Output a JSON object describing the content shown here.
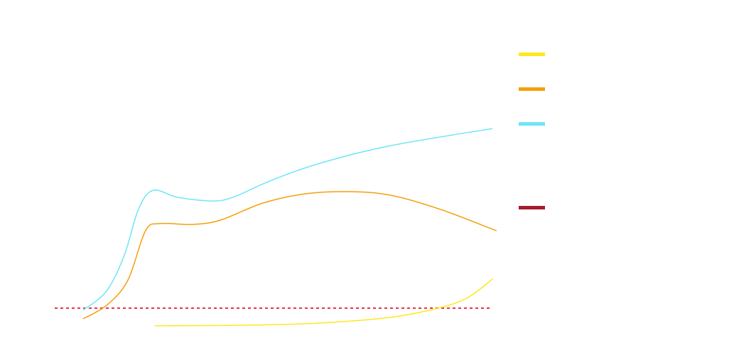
{
  "chart_data": {
    "type": "line",
    "xlim": [
      0,
      100
    ],
    "ylim": [
      0,
      100
    ],
    "series": [
      {
        "color": "#ffe81a",
        "x": [
          22.6,
          43.8,
          59.9,
          75.9,
          87.2,
          93.6,
          98.9
        ],
        "values": [
          3.7,
          4,
          5,
          7.7,
          12.3,
          17.3,
          25.7
        ]
      },
      {
        "color": "#f59f0a",
        "x": [
          6.4,
          11.7,
          16.5,
          20.5,
          23.8,
          31,
          37.4,
          47,
          56.7,
          66.3,
          75.9,
          87.2,
          99.8
        ],
        "values": [
          7,
          13.3,
          25,
          48.3,
          51.7,
          51.3,
          53.3,
          61.3,
          65.7,
          66.7,
          65,
          58.3,
          48.3
        ]
      },
      {
        "color": "#6ee6f5",
        "x": [
          6.4,
          11.7,
          15.7,
          18.9,
          22.2,
          27.8,
          35.8,
          40.6,
          48.6,
          59.9,
          75.9,
          98.9
        ],
        "values": [
          11,
          20,
          36.7,
          58.3,
          67.3,
          64,
          62.3,
          64.3,
          71.7,
          80,
          88.3,
          96.3
        ]
      }
    ],
    "reference_line": {
      "value": 12,
      "color": "#e8334a",
      "legend_color": "#a51c30"
    }
  }
}
